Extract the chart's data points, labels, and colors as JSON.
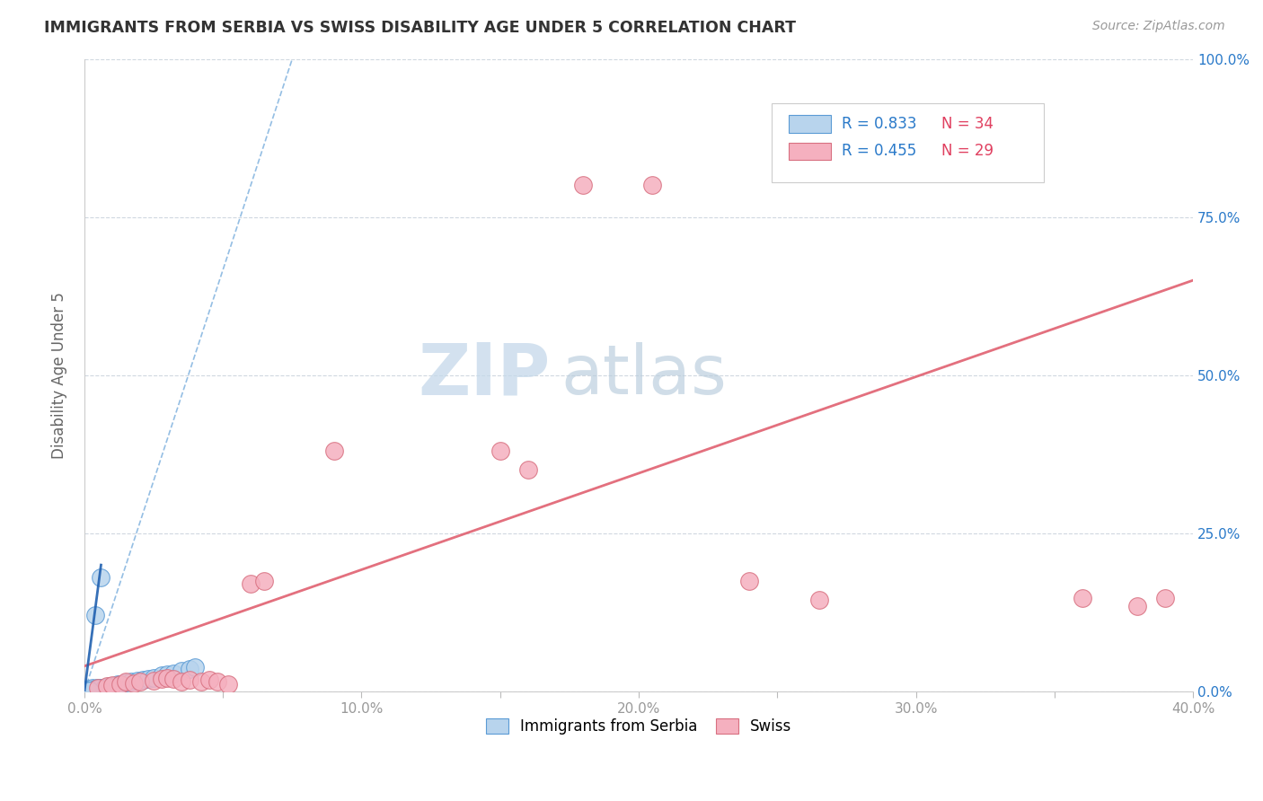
{
  "title": "IMMIGRANTS FROM SERBIA VS SWISS DISABILITY AGE UNDER 5 CORRELATION CHART",
  "source_text": "Source: ZipAtlas.com",
  "ylabel": "Disability Age Under 5",
  "xlim": [
    0.0,
    0.4
  ],
  "ylim": [
    0.0,
    1.0
  ],
  "xticks": [
    0.0,
    0.05,
    0.1,
    0.15,
    0.2,
    0.25,
    0.3,
    0.35,
    0.4
  ],
  "xticklabels": [
    "0.0%",
    "",
    "10.0%",
    "",
    "20.0%",
    "",
    "30.0%",
    "",
    "40.0%"
  ],
  "yticks": [
    0.0,
    0.25,
    0.5,
    0.75,
    1.0
  ],
  "yticklabels": [
    "0.0%",
    "25.0%",
    "50.0%",
    "75.0%",
    "100.0%"
  ],
  "serbia_R": 0.833,
  "serbia_N": 34,
  "swiss_R": 0.455,
  "swiss_N": 29,
  "serbia_color": "#b8d4ed",
  "swiss_color": "#f5b0bf",
  "serbia_line_color": "#5b9bd5",
  "swiss_line_color": "#e06070",
  "legend_R_color": "#2979c9",
  "legend_N_color": "#e04060",
  "watermark_zip": "ZIP",
  "watermark_atlas": "atlas",
  "watermark_color_zip": "#c5d8ea",
  "watermark_color_atlas": "#b8ccdc",
  "serbia_points": [
    [
      0.001,
      0.002
    ],
    [
      0.002,
      0.003
    ],
    [
      0.002,
      0.004
    ],
    [
      0.003,
      0.002
    ],
    [
      0.003,
      0.003
    ],
    [
      0.003,
      0.005
    ],
    [
      0.004,
      0.003
    ],
    [
      0.004,
      0.004
    ],
    [
      0.004,
      0.12
    ],
    [
      0.005,
      0.004
    ],
    [
      0.005,
      0.005
    ],
    [
      0.005,
      0.006
    ],
    [
      0.006,
      0.005
    ],
    [
      0.006,
      0.18
    ],
    [
      0.007,
      0.006
    ],
    [
      0.008,
      0.007
    ],
    [
      0.009,
      0.008
    ],
    [
      0.01,
      0.009
    ],
    [
      0.012,
      0.011
    ],
    [
      0.013,
      0.012
    ],
    [
      0.015,
      0.014
    ],
    [
      0.017,
      0.015
    ],
    [
      0.019,
      0.017
    ],
    [
      0.021,
      0.019
    ],
    [
      0.023,
      0.02
    ],
    [
      0.025,
      0.022
    ],
    [
      0.028,
      0.025
    ],
    [
      0.03,
      0.027
    ],
    [
      0.032,
      0.029
    ],
    [
      0.035,
      0.032
    ],
    [
      0.038,
      0.035
    ],
    [
      0.04,
      0.038
    ],
    [
      0.001,
      0.001
    ],
    [
      0.002,
      0.001
    ]
  ],
  "swiss_points": [
    [
      0.005,
      0.005
    ],
    [
      0.008,
      0.008
    ],
    [
      0.01,
      0.01
    ],
    [
      0.013,
      0.012
    ],
    [
      0.015,
      0.015
    ],
    [
      0.018,
      0.013
    ],
    [
      0.02,
      0.015
    ],
    [
      0.025,
      0.017
    ],
    [
      0.028,
      0.02
    ],
    [
      0.03,
      0.022
    ],
    [
      0.032,
      0.02
    ],
    [
      0.035,
      0.015
    ],
    [
      0.038,
      0.018
    ],
    [
      0.042,
      0.015
    ],
    [
      0.045,
      0.018
    ],
    [
      0.048,
      0.016
    ],
    [
      0.052,
      0.012
    ],
    [
      0.06,
      0.17
    ],
    [
      0.065,
      0.175
    ],
    [
      0.09,
      0.38
    ],
    [
      0.15,
      0.38
    ],
    [
      0.16,
      0.35
    ],
    [
      0.18,
      0.8
    ],
    [
      0.205,
      0.8
    ],
    [
      0.24,
      0.175
    ],
    [
      0.265,
      0.145
    ],
    [
      0.36,
      0.148
    ],
    [
      0.38,
      0.135
    ],
    [
      0.39,
      0.148
    ]
  ],
  "serbia_trend_x": [
    0.0,
    0.075
  ],
  "serbia_trend_y": [
    0.0,
    1.0
  ],
  "swiss_trend_x": [
    0.0,
    0.4
  ],
  "swiss_trend_y": [
    0.04,
    0.65
  ]
}
